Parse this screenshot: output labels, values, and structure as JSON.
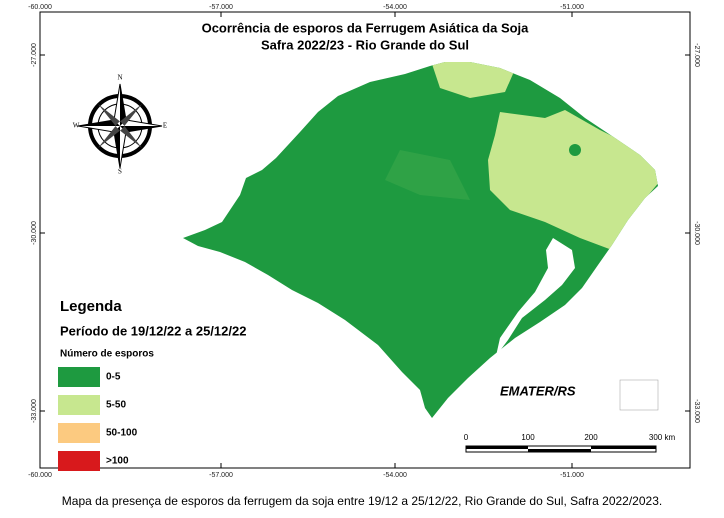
{
  "map": {
    "title": [
      "Ocorrência de esporos da Ferrugem Asiática da Soja",
      "Safra 2022/23 - Rio Grande do Sul"
    ],
    "lon_labels": [
      "-60.000",
      "-57.000",
      "-54.000",
      "-51.000"
    ],
    "lat_labels": [
      "-27.000",
      "-30.000",
      "-33.000"
    ],
    "compass": {
      "n": "N",
      "s": "S",
      "e": "E",
      "w": "W"
    },
    "legend": {
      "title": "Legenda",
      "period": "Período de 19/12/22 a 25/12/22",
      "subtitle": "Número de esporos",
      "items": [
        {
          "label": "0-5",
          "color": "#1e9a40"
        },
        {
          "label": "5-50",
          "color": "#c7e78f"
        },
        {
          "label": "50-100",
          "color": "#fcca80"
        },
        {
          "label": ">100",
          "color": "#d8191c"
        }
      ]
    },
    "scale": [
      "0",
      "100",
      "200",
      "300 km"
    ],
    "logo": "EMATER/RS",
    "caption": "Mapa da presença de esporos da ferrugem da soja entre 19/12 a 25/12/22, Rio Grande do Sul, Safra 2022/2023."
  }
}
